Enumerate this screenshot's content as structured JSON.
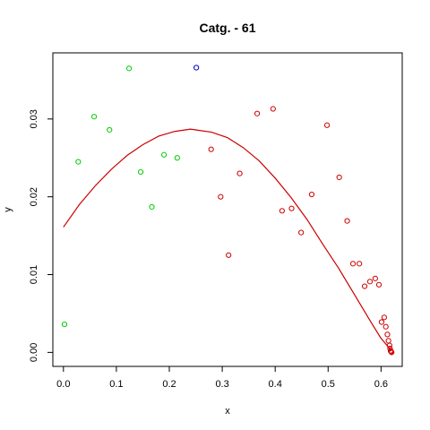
{
  "chart_data": {
    "type": "scatter",
    "title": "Catg. - 61",
    "xlabel": "x",
    "ylabel": "y",
    "xlim": [
      -0.02,
      0.64
    ],
    "ylim": [
      -0.0018,
      0.0385
    ],
    "x_ticks": [
      0.0,
      0.1,
      0.2,
      0.3,
      0.4,
      0.5,
      0.6
    ],
    "x_tick_labels": [
      "0.0",
      "0.1",
      "0.2",
      "0.3",
      "0.4",
      "0.5",
      "0.6"
    ],
    "y_ticks": [
      0.0,
      0.01,
      0.02,
      0.03
    ],
    "y_tick_labels": [
      "0.00",
      "0.01",
      "0.02",
      "0.03"
    ],
    "grid": false,
    "legend": "none",
    "series": [
      {
        "color": "#00cc00",
        "marker": "open-circle",
        "points": [
          [
            0.002,
            0.0036
          ],
          [
            0.028,
            0.0245
          ],
          [
            0.058,
            0.0303
          ],
          [
            0.087,
            0.0286
          ],
          [
            0.124,
            0.0365
          ],
          [
            0.146,
            0.0232
          ],
          [
            0.167,
            0.0187
          ],
          [
            0.19,
            0.0254
          ],
          [
            0.215,
            0.025
          ]
        ]
      },
      {
        "color": "#0000cc",
        "marker": "open-circle",
        "points": [
          [
            0.251,
            0.0366
          ]
        ]
      },
      {
        "color": "#cc0000",
        "marker": "open-circle",
        "points": [
          [
            0.279,
            0.0261
          ],
          [
            0.297,
            0.02
          ],
          [
            0.312,
            0.0125
          ],
          [
            0.333,
            0.023
          ],
          [
            0.366,
            0.0307
          ],
          [
            0.396,
            0.0313
          ],
          [
            0.413,
            0.0182
          ],
          [
            0.431,
            0.0185
          ],
          [
            0.449,
            0.0154
          ],
          [
            0.469,
            0.0203
          ],
          [
            0.498,
            0.0292
          ],
          [
            0.521,
            0.0225
          ],
          [
            0.536,
            0.0169
          ],
          [
            0.547,
            0.0114
          ],
          [
            0.559,
            0.0114
          ],
          [
            0.569,
            0.0085
          ],
          [
            0.579,
            0.0091
          ],
          [
            0.589,
            0.0095
          ],
          [
            0.596,
            0.0087
          ],
          [
            0.601,
            0.0039
          ],
          [
            0.606,
            0.0045
          ],
          [
            0.609,
            0.0033
          ],
          [
            0.612,
            0.0023
          ],
          [
            0.614,
            0.0015
          ],
          [
            0.616,
            0.0009
          ],
          [
            0.617,
            0.0005
          ],
          [
            0.618,
            0.0002
          ],
          [
            0.619,
            0.0001
          ],
          [
            0.62,
            0.0
          ]
        ]
      }
    ],
    "fit_line": {
      "color": "#cc0000",
      "points": [
        [
          0.0,
          0.0161
        ],
        [
          0.03,
          0.019
        ],
        [
          0.06,
          0.0214
        ],
        [
          0.09,
          0.0235
        ],
        [
          0.12,
          0.0253
        ],
        [
          0.15,
          0.0267
        ],
        [
          0.18,
          0.0278
        ],
        [
          0.21,
          0.0284
        ],
        [
          0.24,
          0.0287
        ],
        [
          0.25,
          0.0286
        ],
        [
          0.28,
          0.0283
        ],
        [
          0.31,
          0.0276
        ],
        [
          0.34,
          0.0263
        ],
        [
          0.37,
          0.0246
        ],
        [
          0.4,
          0.0224
        ],
        [
          0.43,
          0.0199
        ],
        [
          0.46,
          0.0171
        ],
        [
          0.49,
          0.0139
        ],
        [
          0.52,
          0.0108
        ],
        [
          0.55,
          0.0074
        ],
        [
          0.58,
          0.004
        ],
        [
          0.6,
          0.0018
        ],
        [
          0.62,
          0.0002
        ]
      ]
    }
  }
}
